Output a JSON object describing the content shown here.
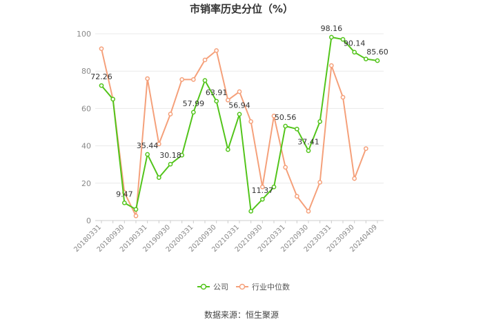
{
  "chart_data": {
    "type": "line",
    "title": "市销率历史分位（%）",
    "source": "数据来源：恒生聚源",
    "ylim": [
      0,
      100
    ],
    "yticks": [
      0,
      20,
      40,
      60,
      80,
      100
    ],
    "grid": true,
    "legend_position": "bottom",
    "x": [
      "20180331",
      "20180630",
      "20180930",
      "20181231",
      "20190331",
      "20190630",
      "20190930",
      "20191231",
      "20200331",
      "20200630",
      "20200930",
      "20201231",
      "20210331",
      "20210630",
      "20210930",
      "20211231",
      "20220331",
      "20220630",
      "20220930",
      "20221231",
      "20230331",
      "20230630",
      "20230930",
      "20231231",
      "20240409"
    ],
    "x_tick_labels": [
      "20180331",
      "20180930",
      "20190331",
      "20190930",
      "20200331",
      "20200930",
      "20210331",
      "20210930",
      "20220331",
      "20220930",
      "20230331",
      "20230930",
      "20240409"
    ],
    "series": [
      {
        "name": "公司",
        "color": "#52c41a",
        "values": [
          72.26,
          65,
          9.47,
          6,
          35.44,
          23,
          30.18,
          35,
          57.99,
          75,
          63.91,
          38,
          56.94,
          5,
          11.37,
          18,
          50.56,
          49,
          37.41,
          53,
          98.16,
          97,
          90.14,
          86.5,
          85.6
        ],
        "labels": {
          "0": "72.26",
          "2": "9.47",
          "4": "35.44",
          "6": "30.18",
          "8": "57.99",
          "10": "63.91",
          "12": "56.94",
          "14": "11.37",
          "16": "50.56",
          "18": "37.41",
          "20": "98.16",
          "22": "90.14",
          "24": "85.60"
        }
      },
      {
        "name": "行业中位数",
        "color": "#f5a07a",
        "values": [
          92,
          65,
          15,
          2.5,
          76,
          41,
          57,
          75.5,
          75.5,
          86,
          91,
          64.5,
          69,
          53,
          18,
          56,
          28.5,
          13,
          5,
          20.5,
          83,
          66,
          22.5,
          38.5,
          null
        ]
      }
    ]
  }
}
